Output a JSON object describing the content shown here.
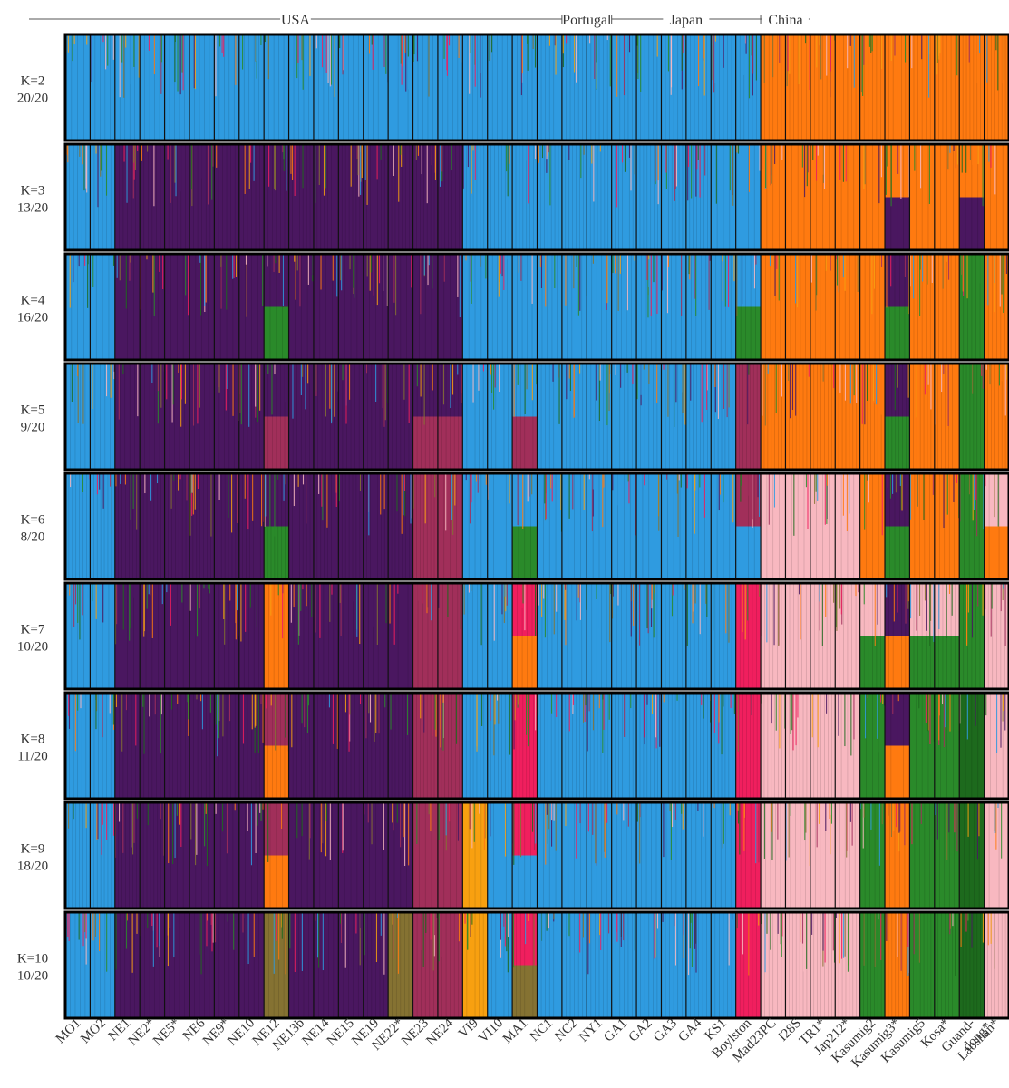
{
  "chart_data": {
    "type": "bar",
    "stacked": true,
    "regions": [
      {
        "label": "USA",
        "from": 0,
        "to": 19
      },
      {
        "label": "Portugal",
        "from": 20,
        "to": 21
      },
      {
        "label": "Japan",
        "from": 22,
        "to": 27
      },
      {
        "label": "China",
        "from": 28,
        "to": 29
      }
    ],
    "populations": [
      "MO1",
      "MO2",
      "NE1",
      "NE2*",
      "NE5*",
      "NE6",
      "NE9*",
      "NE10",
      "NE12",
      "NE13b",
      "NE14",
      "NE15",
      "NE19",
      "NE22*",
      "NE23",
      "NE24",
      "VI9",
      "VI10",
      "MA1",
      "NC1",
      "NC2",
      "NY1",
      "GA1",
      "GA2",
      "GA3",
      "GA4",
      "KS1",
      "Boylston",
      "Mad23PC",
      "I28S",
      "TR1*",
      "Jap212*",
      "Kasumig2",
      "Kasumig3*",
      "Kasumig5",
      "Kosa*",
      "Guand-\ndong*",
      "Laoshan*"
    ],
    "colors": {
      "blue": "#2f9be0",
      "orange": "#ff7a10",
      "purple": "#4a1760",
      "green": "#2a8a2a",
      "maroon": "#a12f5a",
      "pink": "#f8b8c0",
      "red": "#f01f5e",
      "yellow": "#f8a010",
      "olive": "#857232",
      "darkgreen": "#1d6a1d"
    },
    "panels": [
      {
        "k": "K=2",
        "runs": "20/20",
        "pops": [
          [
            "blue"
          ],
          [
            "blue"
          ],
          [
            "blue"
          ],
          [
            "blue"
          ],
          [
            "blue"
          ],
          [
            "blue"
          ],
          [
            "blue"
          ],
          [
            "blue"
          ],
          [
            "blue"
          ],
          [
            "blue"
          ],
          [
            "blue"
          ],
          [
            "blue"
          ],
          [
            "blue"
          ],
          [
            "blue"
          ],
          [
            "blue"
          ],
          [
            "blue"
          ],
          [
            "blue"
          ],
          [
            "blue"
          ],
          [
            "blue"
          ],
          [
            "blue"
          ],
          [
            "blue"
          ],
          [
            "blue"
          ],
          [
            "blue"
          ],
          [
            "blue"
          ],
          [
            "blue"
          ],
          [
            "blue"
          ],
          [
            "blue"
          ],
          [
            "blue"
          ],
          [
            "orange"
          ],
          [
            "orange"
          ],
          [
            "orange"
          ],
          [
            "orange"
          ],
          [
            "orange"
          ],
          [
            "orange"
          ],
          [
            "orange"
          ],
          [
            "orange"
          ],
          [
            "orange"
          ],
          [
            "orange"
          ]
        ]
      },
      {
        "k": "K=3",
        "runs": "13/20",
        "pops": [
          [
            "blue"
          ],
          [
            "blue"
          ],
          [
            "purple"
          ],
          [
            "purple"
          ],
          [
            "purple"
          ],
          [
            "purple"
          ],
          [
            "purple"
          ],
          [
            "purple"
          ],
          [
            "purple"
          ],
          [
            "purple"
          ],
          [
            "purple"
          ],
          [
            "purple"
          ],
          [
            "purple"
          ],
          [
            "purple"
          ],
          [
            "purple"
          ],
          [
            "purple"
          ],
          [
            "blue"
          ],
          [
            "blue"
          ],
          [
            "blue"
          ],
          [
            "blue"
          ],
          [
            "blue"
          ],
          [
            "blue"
          ],
          [
            "blue"
          ],
          [
            "blue"
          ],
          [
            "blue"
          ],
          [
            "blue"
          ],
          [
            "blue"
          ],
          [
            "blue"
          ],
          [
            "orange"
          ],
          [
            "orange"
          ],
          [
            "orange"
          ],
          [
            "orange"
          ],
          [
            "orange"
          ],
          [
            "orange",
            "purple"
          ],
          [
            "orange"
          ],
          [
            "orange"
          ],
          [
            "orange",
            "purple"
          ],
          [
            "orange"
          ]
        ]
      },
      {
        "k": "K=4",
        "runs": "16/20",
        "pops": [
          [
            "blue"
          ],
          [
            "blue"
          ],
          [
            "purple"
          ],
          [
            "purple"
          ],
          [
            "purple"
          ],
          [
            "purple"
          ],
          [
            "purple"
          ],
          [
            "purple"
          ],
          [
            "purple",
            "green"
          ],
          [
            "purple"
          ],
          [
            "purple"
          ],
          [
            "purple"
          ],
          [
            "purple"
          ],
          [
            "purple"
          ],
          [
            "purple"
          ],
          [
            "purple"
          ],
          [
            "blue"
          ],
          [
            "blue"
          ],
          [
            "blue"
          ],
          [
            "blue"
          ],
          [
            "blue"
          ],
          [
            "blue"
          ],
          [
            "blue"
          ],
          [
            "blue"
          ],
          [
            "blue"
          ],
          [
            "blue"
          ],
          [
            "blue"
          ],
          [
            "blue",
            "green"
          ],
          [
            "orange"
          ],
          [
            "orange"
          ],
          [
            "orange"
          ],
          [
            "orange"
          ],
          [
            "orange"
          ],
          [
            "purple",
            "green"
          ],
          [
            "orange"
          ],
          [
            "orange"
          ],
          [
            "green"
          ],
          [
            "orange"
          ]
        ]
      },
      {
        "k": "K=5",
        "runs": "9/20",
        "pops": [
          [
            "blue"
          ],
          [
            "blue"
          ],
          [
            "purple"
          ],
          [
            "purple"
          ],
          [
            "purple"
          ],
          [
            "purple"
          ],
          [
            "purple"
          ],
          [
            "purple"
          ],
          [
            "purple",
            "maroon"
          ],
          [
            "purple"
          ],
          [
            "purple"
          ],
          [
            "purple"
          ],
          [
            "purple"
          ],
          [
            "purple"
          ],
          [
            "purple",
            "maroon"
          ],
          [
            "purple",
            "maroon"
          ],
          [
            "blue"
          ],
          [
            "blue"
          ],
          [
            "blue",
            "maroon"
          ],
          [
            "blue"
          ],
          [
            "blue"
          ],
          [
            "blue"
          ],
          [
            "blue"
          ],
          [
            "blue"
          ],
          [
            "blue"
          ],
          [
            "blue"
          ],
          [
            "blue"
          ],
          [
            "maroon"
          ],
          [
            "orange"
          ],
          [
            "orange"
          ],
          [
            "orange"
          ],
          [
            "orange"
          ],
          [
            "orange"
          ],
          [
            "purple",
            "green"
          ],
          [
            "orange"
          ],
          [
            "orange"
          ],
          [
            "green"
          ],
          [
            "orange"
          ]
        ]
      },
      {
        "k": "K=6",
        "runs": "8/20",
        "pops": [
          [
            "blue"
          ],
          [
            "blue"
          ],
          [
            "purple"
          ],
          [
            "purple"
          ],
          [
            "purple"
          ],
          [
            "purple"
          ],
          [
            "purple"
          ],
          [
            "purple"
          ],
          [
            "purple",
            "green"
          ],
          [
            "purple"
          ],
          [
            "purple"
          ],
          [
            "purple"
          ],
          [
            "purple"
          ],
          [
            "purple"
          ],
          [
            "maroon"
          ],
          [
            "maroon"
          ],
          [
            "blue"
          ],
          [
            "blue"
          ],
          [
            "blue",
            "green"
          ],
          [
            "blue"
          ],
          [
            "blue"
          ],
          [
            "blue"
          ],
          [
            "blue"
          ],
          [
            "blue"
          ],
          [
            "blue"
          ],
          [
            "blue"
          ],
          [
            "blue"
          ],
          [
            "maroon",
            "blue"
          ],
          [
            "pink"
          ],
          [
            "pink"
          ],
          [
            "pink"
          ],
          [
            "pink"
          ],
          [
            "orange"
          ],
          [
            "purple",
            "green"
          ],
          [
            "orange"
          ],
          [
            "orange"
          ],
          [
            "green"
          ],
          [
            "pink",
            "orange"
          ]
        ]
      },
      {
        "k": "K=7",
        "runs": "10/20",
        "pops": [
          [
            "blue"
          ],
          [
            "blue"
          ],
          [
            "purple"
          ],
          [
            "purple"
          ],
          [
            "purple"
          ],
          [
            "purple"
          ],
          [
            "purple"
          ],
          [
            "purple"
          ],
          [
            "orange"
          ],
          [
            "purple"
          ],
          [
            "purple"
          ],
          [
            "purple"
          ],
          [
            "purple"
          ],
          [
            "purple"
          ],
          [
            "maroon"
          ],
          [
            "maroon"
          ],
          [
            "blue"
          ],
          [
            "blue"
          ],
          [
            "red",
            "orange"
          ],
          [
            "blue"
          ],
          [
            "blue"
          ],
          [
            "blue"
          ],
          [
            "blue"
          ],
          [
            "blue"
          ],
          [
            "blue"
          ],
          [
            "blue"
          ],
          [
            "blue"
          ],
          [
            "red"
          ],
          [
            "pink"
          ],
          [
            "pink"
          ],
          [
            "pink"
          ],
          [
            "pink"
          ],
          [
            "pink",
            "green"
          ],
          [
            "purple",
            "orange"
          ],
          [
            "pink",
            "green"
          ],
          [
            "pink",
            "green"
          ],
          [
            "green"
          ],
          [
            "pink"
          ]
        ]
      },
      {
        "k": "K=8",
        "runs": "11/20",
        "pops": [
          [
            "blue"
          ],
          [
            "blue"
          ],
          [
            "purple"
          ],
          [
            "purple"
          ],
          [
            "purple"
          ],
          [
            "purple"
          ],
          [
            "purple"
          ],
          [
            "purple"
          ],
          [
            "maroon",
            "orange"
          ],
          [
            "purple"
          ],
          [
            "purple"
          ],
          [
            "purple"
          ],
          [
            "purple"
          ],
          [
            "purple"
          ],
          [
            "maroon"
          ],
          [
            "maroon"
          ],
          [
            "blue"
          ],
          [
            "blue"
          ],
          [
            "red"
          ],
          [
            "blue"
          ],
          [
            "blue"
          ],
          [
            "blue"
          ],
          [
            "blue"
          ],
          [
            "blue"
          ],
          [
            "blue"
          ],
          [
            "blue"
          ],
          [
            "blue"
          ],
          [
            "red"
          ],
          [
            "pink"
          ],
          [
            "pink"
          ],
          [
            "pink"
          ],
          [
            "pink"
          ],
          [
            "green"
          ],
          [
            "purple",
            "orange"
          ],
          [
            "green"
          ],
          [
            "green"
          ],
          [
            "darkgreen"
          ],
          [
            "pink"
          ]
        ]
      },
      {
        "k": "K=9",
        "runs": "18/20",
        "pops": [
          [
            "blue"
          ],
          [
            "blue"
          ],
          [
            "purple"
          ],
          [
            "purple"
          ],
          [
            "purple"
          ],
          [
            "purple"
          ],
          [
            "purple"
          ],
          [
            "purple"
          ],
          [
            "maroon",
            "orange"
          ],
          [
            "purple"
          ],
          [
            "purple"
          ],
          [
            "purple"
          ],
          [
            "purple"
          ],
          [
            "purple"
          ],
          [
            "maroon"
          ],
          [
            "maroon"
          ],
          [
            "yellow"
          ],
          [
            "blue"
          ],
          [
            "red",
            "blue"
          ],
          [
            "blue"
          ],
          [
            "blue"
          ],
          [
            "blue"
          ],
          [
            "blue"
          ],
          [
            "blue"
          ],
          [
            "blue"
          ],
          [
            "blue"
          ],
          [
            "blue"
          ],
          [
            "red"
          ],
          [
            "pink"
          ],
          [
            "pink"
          ],
          [
            "pink"
          ],
          [
            "pink"
          ],
          [
            "green"
          ],
          [
            "orange"
          ],
          [
            "green"
          ],
          [
            "green"
          ],
          [
            "darkgreen"
          ],
          [
            "pink"
          ]
        ]
      },
      {
        "k": "K=10",
        "runs": "10/20",
        "pops": [
          [
            "blue"
          ],
          [
            "blue"
          ],
          [
            "purple"
          ],
          [
            "purple"
          ],
          [
            "purple"
          ],
          [
            "purple"
          ],
          [
            "purple"
          ],
          [
            "purple"
          ],
          [
            "olive"
          ],
          [
            "purple"
          ],
          [
            "purple"
          ],
          [
            "purple"
          ],
          [
            "purple"
          ],
          [
            "olive"
          ],
          [
            "maroon"
          ],
          [
            "maroon"
          ],
          [
            "yellow"
          ],
          [
            "blue"
          ],
          [
            "red",
            "olive"
          ],
          [
            "blue"
          ],
          [
            "blue"
          ],
          [
            "blue"
          ],
          [
            "blue"
          ],
          [
            "blue"
          ],
          [
            "blue"
          ],
          [
            "blue"
          ],
          [
            "blue"
          ],
          [
            "red"
          ],
          [
            "pink"
          ],
          [
            "pink"
          ],
          [
            "pink"
          ],
          [
            "pink"
          ],
          [
            "green"
          ],
          [
            "orange"
          ],
          [
            "green"
          ],
          [
            "green"
          ],
          [
            "darkgreen"
          ],
          [
            "pink"
          ]
        ]
      }
    ]
  }
}
